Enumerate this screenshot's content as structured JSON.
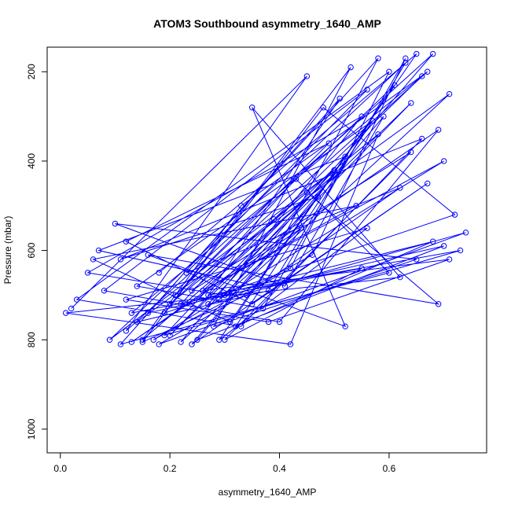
{
  "chart_data": {
    "type": "line",
    "title": "ATOM3 Southbound asymmetry_1640_AMP",
    "xlabel": "asymmetry_1640_AMP",
    "ylabel": "Pressure (mbar)",
    "color": "#0000ff",
    "markers": true,
    "xlim": [
      -0.024,
      0.778
    ],
    "ylim": [
      1053,
      145
    ],
    "xticks": [
      {
        "value": 0,
        "label": "0.0"
      },
      0.2,
      0.4,
      0.6
    ],
    "yticks": [
      200,
      400,
      600,
      800,
      1000
    ],
    "x": [
      0.02,
      0.45,
      0.12,
      0.68,
      0.3,
      0.05,
      0.55,
      0.22,
      0.71,
      0.14,
      0.38,
      0.63,
      0.09,
      0.5,
      0.27,
      0.74,
      0.18,
      0.42,
      0.6,
      0.03,
      0.33,
      0.66,
      0.11,
      0.47,
      0.25,
      0.7,
      0.16,
      0.58,
      0.36,
      0.07,
      0.52,
      0.2,
      0.64,
      0.29,
      0.44,
      0.13,
      0.69,
      0.4,
      0.08,
      0.56,
      0.23,
      0.62,
      0.34,
      0.15,
      0.48,
      0.72,
      0.19,
      0.53,
      0.28,
      0.65,
      0.1,
      0.41,
      0.59,
      0.24,
      0.67,
      0.35,
      0.12,
      0.49,
      0.21,
      0.61,
      0.31,
      0.06,
      0.54,
      0.26,
      0.7,
      0.17,
      0.46,
      0.63,
      0.37,
      0.14,
      0.57,
      0.32,
      0.68,
      0.22,
      0.43,
      0.6,
      0.11,
      0.51,
      0.27,
      0.73,
      0.19,
      0.39,
      0.66,
      0.13,
      0.55,
      0.3,
      0.64,
      0.24,
      0.45,
      0.69,
      0.16,
      0.52,
      0.35,
      0.62,
      0.01,
      0.42,
      0.58,
      0.2,
      0.67,
      0.33,
      0.15,
      0.5,
      0.26,
      0.71,
      0.38,
      0.12,
      0.56,
      0.29,
      0.65,
      0.18
    ],
    "values": [
      730,
      210,
      780,
      160,
      700,
      650,
      300,
      805,
      250,
      760,
      690,
      180,
      800,
      420,
      720,
      560,
      810,
      640,
      200,
      710,
      770,
      350,
      620,
      480,
      800,
      590,
      740,
      170,
      680,
      600,
      390,
      790,
      270,
      710,
      550,
      805,
      330,
      760,
      690,
      240,
      650,
      460,
      700,
      805,
      280,
      520,
      740,
      190,
      770,
      620,
      540,
      680,
      300,
      810,
      450,
      720,
      580,
      360,
      700,
      230,
      760,
      620,
      500,
      690,
      400,
      800,
      610,
      170,
      730,
      680,
      310,
      770,
      580,
      720,
      440,
      650,
      810,
      260,
      700,
      600,
      790,
      530,
      210,
      740,
      640,
      800,
      380,
      690,
      470,
      720,
      610,
      770,
      280,
      660,
      740,
      810,
      340,
      720,
      200,
      500,
      800,
      430,
      690,
      620,
      760,
      710,
      550,
      800,
      160,
      650
    ]
  }
}
